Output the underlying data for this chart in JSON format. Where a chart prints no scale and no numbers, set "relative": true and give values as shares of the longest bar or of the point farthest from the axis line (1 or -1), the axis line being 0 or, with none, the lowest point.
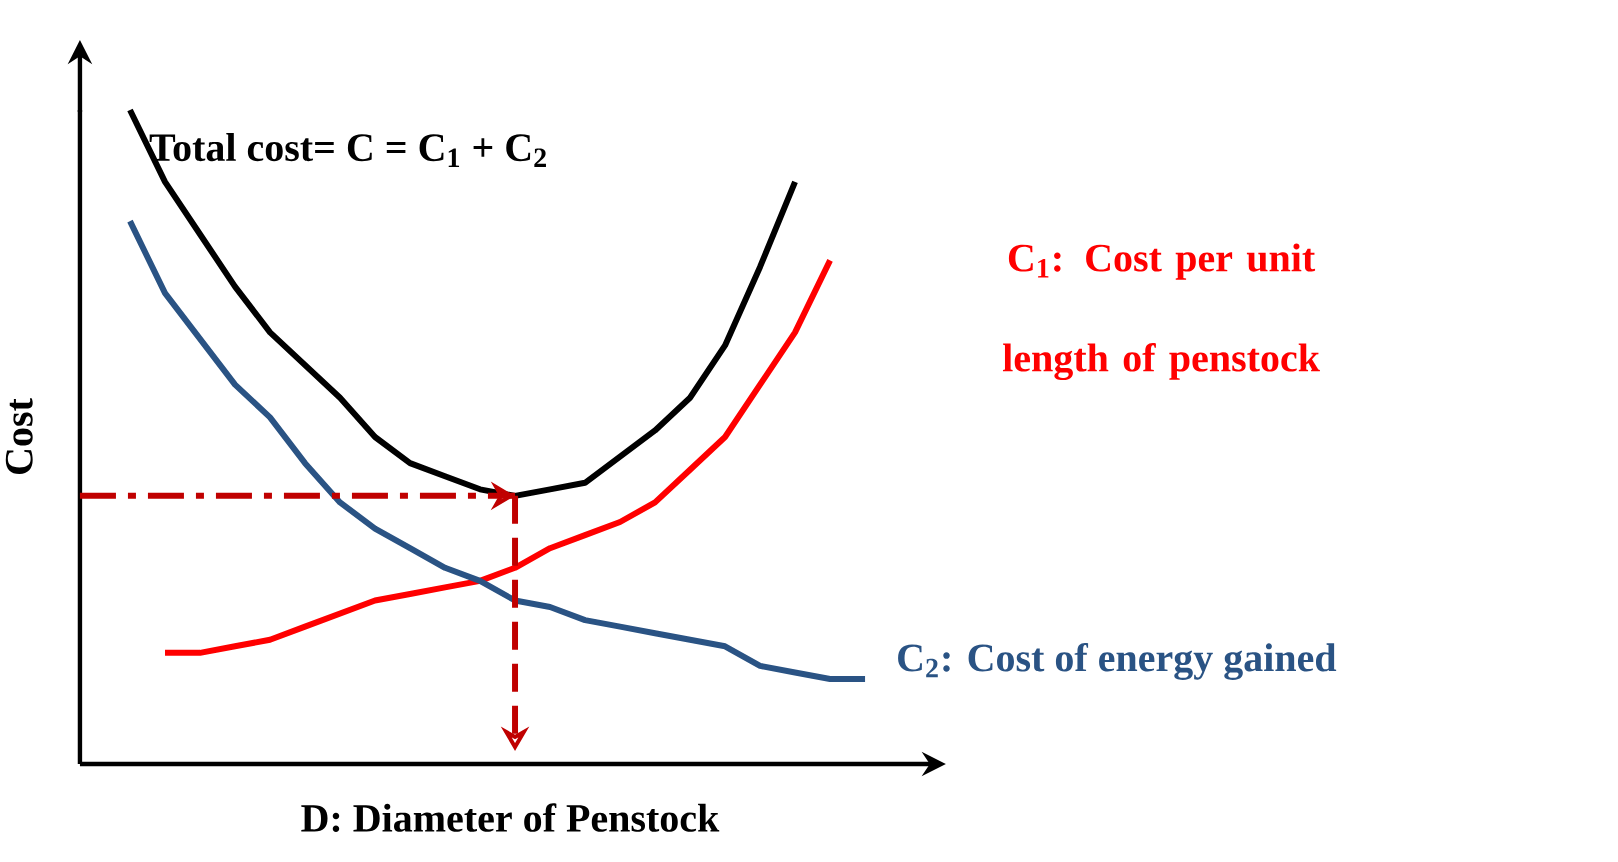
{
  "chart_data": {
    "type": "line",
    "relative": true,
    "xlabel": "D: Diameter of Penstock",
    "ylabel": "Cost",
    "tick_labels": false,
    "legend": false,
    "marker": "none",
    "line_style": "solid",
    "categories": [
      null,
      null,
      null,
      null,
      null,
      null,
      null,
      null,
      null,
      null,
      null,
      null,
      null,
      null,
      null,
      null,
      null,
      null,
      null,
      null,
      null,
      null
    ],
    "series": [
      {
        "name": "Total cost= C = C$_{1}$ + C$_{2}$",
        "color": "#000000",
        "values": [
          1.0,
          0.89,
          0.81,
          0.73,
          0.66,
          0.61,
          0.56,
          0.5,
          0.46,
          0.44,
          0.42,
          0.41,
          0.42,
          0.43,
          0.47,
          0.51,
          0.56,
          0.64,
          0.76,
          0.89,
          null,
          null
        ]
      },
      {
        "name": "C$_{1}$: Cost per unit length of penstock",
        "color": "#ff0000",
        "values": [
          null,
          0.17,
          0.17,
          0.18,
          0.19,
          0.21,
          0.23,
          0.25,
          0.26,
          0.27,
          0.28,
          0.3,
          0.33,
          0.35,
          0.37,
          0.4,
          0.45,
          0.5,
          0.58,
          0.66,
          0.77,
          null
        ]
      },
      {
        "name": "C$_{2}$: Cost of energy gained",
        "color": "#2a5384",
        "values": [
          0.83,
          0.72,
          0.65,
          0.58,
          0.53,
          0.46,
          0.4,
          0.36,
          0.33,
          0.3,
          0.28,
          0.25,
          0.24,
          0.22,
          0.21,
          0.2,
          0.19,
          0.18,
          0.15,
          0.14,
          0.13,
          0.13
        ]
      }
    ],
    "ref_lines": [
      {
        "axis": "y",
        "value": 0.41,
        "color": "#c00000",
        "line_style": "dashed"
      }
    ]
  }
}
